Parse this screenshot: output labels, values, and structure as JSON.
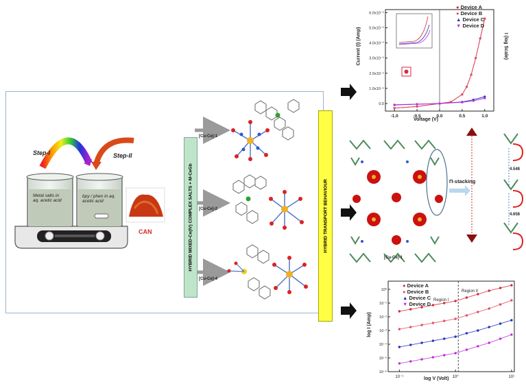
{
  "panel": {
    "step1": "Step-I",
    "step2": "Step-II",
    "beaker1_text": "Metal salts in aq. acetic acid",
    "beaker2_text": "bpy / phen in aq. acetic acid",
    "can_label": "CAN",
    "synthesis_bar": "HYBRID MIXED-Ce(IV) COMPLEX SALTS + M-CeGb",
    "transport_bar": "HYBRID TRANSPORT BEHAVIOUR",
    "complex1": "[Cu-Ce]-1",
    "complex2": "[Cu-Ce]-2",
    "complex3": "[Cu-Ce]-4"
  },
  "packing": {
    "label": "[Cu-Ce]-1",
    "pi_label": "Π-stacking",
    "dist1": "4.548",
    "dist2": "4.658"
  },
  "chart_data": [
    {
      "type": "line",
      "xlabel": "Voltage (V)",
      "ylabel": "Current (I) (Amp)",
      "y2label": "I (log Scale)",
      "x_ticks": [
        "-1.0",
        "-0.5",
        "0.0",
        "0.5",
        "1.0"
      ],
      "y_ticks": [
        "0.0",
        "1.0x10⁻⁵",
        "2.0x10⁻⁵",
        "3.0x10⁻⁵",
        "4.0x10⁻⁵",
        "5.0x10⁻⁵",
        "6.0x10⁻⁵"
      ],
      "legend": [
        "Device A",
        "Device B",
        "Device C",
        "Device D"
      ],
      "colors": [
        "#d42a3c",
        "#e0506a",
        "#2233bb",
        "#c030d8"
      ],
      "series": [
        {
          "name": "Device A",
          "x": [
            -1.0,
            -0.5,
            0.0,
            0.25,
            0.5,
            0.6,
            0.7,
            0.8,
            0.9,
            1.0
          ],
          "y": [
            -0.3,
            -0.2,
            0.0,
            0.1,
            0.6,
            1.1,
            1.9,
            3.0,
            4.3,
            5.6
          ]
        },
        {
          "name": "Device B",
          "x": [
            -1.0,
            -0.5,
            0.0,
            0.25,
            0.5,
            0.6,
            0.7,
            0.8,
            0.9,
            1.0
          ],
          "y": [
            -0.3,
            -0.2,
            0.0,
            0.1,
            0.6,
            1.1,
            1.9,
            3.0,
            4.3,
            5.6
          ]
        },
        {
          "name": "Device C",
          "x": [
            -1.0,
            -0.5,
            0.0,
            0.5,
            0.75,
            1.0
          ],
          "y": [
            -0.1,
            -0.05,
            0.0,
            0.1,
            0.25,
            0.45
          ]
        },
        {
          "name": "Device D",
          "x": [
            -1.0,
            -0.5,
            0.0,
            0.5,
            0.75,
            1.0
          ],
          "y": [
            -0.08,
            -0.04,
            0.0,
            0.08,
            0.18,
            0.35
          ]
        }
      ],
      "xlim": [
        -1.2,
        1.2
      ],
      "ylim": [
        -0.5,
        6.2
      ]
    },
    {
      "type": "scatter",
      "xlabel": "log V (Volt)",
      "ylabel": "log I (Amp)",
      "region1": "Region I",
      "region2": "Region II",
      "x_ticks": [
        "10⁻¹",
        "10⁰",
        "10¹"
      ],
      "y_ticks": [
        "10⁻⁶",
        "10⁻⁵",
        "10⁻⁴",
        "10⁻³",
        "10⁻²",
        "10⁻¹",
        "10⁰"
      ],
      "legend": [
        "Device A",
        "Device B",
        "Device C",
        "Device D"
      ],
      "colors": [
        "#d42a3c",
        "#e0506a",
        "#2233bb",
        "#c030d8"
      ],
      "series": [
        {
          "name": "Device A",
          "x": [
            -1.0,
            -0.8,
            -0.6,
            -0.4,
            -0.2,
            0.0,
            0.2,
            0.4,
            0.6,
            0.8,
            1.0
          ],
          "y": [
            -1.6,
            -1.45,
            -1.3,
            -1.15,
            -1.0,
            -0.85,
            -0.6,
            -0.35,
            -0.1,
            0.1,
            0.3
          ]
        },
        {
          "name": "Device B",
          "x": [
            -1.0,
            -0.8,
            -0.6,
            -0.4,
            -0.2,
            0.0,
            0.2,
            0.4,
            0.6,
            0.8,
            1.0
          ],
          "y": [
            -2.9,
            -2.75,
            -2.6,
            -2.45,
            -2.3,
            -2.15,
            -1.9,
            -1.65,
            -1.4,
            -1.1,
            -0.8
          ]
        },
        {
          "name": "Device C",
          "x": [
            -1.0,
            -0.8,
            -0.6,
            -0.4,
            -0.2,
            0.0,
            0.2,
            0.4,
            0.6,
            0.8,
            1.0
          ],
          "y": [
            -4.2,
            -4.05,
            -3.9,
            -3.75,
            -3.6,
            -3.45,
            -3.2,
            -3.0,
            -2.75,
            -2.5,
            -2.25
          ]
        },
        {
          "name": "Device D",
          "x": [
            -1.0,
            -0.8,
            -0.6,
            -0.4,
            -0.2,
            0.0,
            0.2,
            0.4,
            0.6,
            0.8,
            1.0
          ],
          "y": [
            -5.4,
            -5.25,
            -5.1,
            -4.95,
            -4.8,
            -4.65,
            -4.4,
            -4.15,
            -3.9,
            -3.6,
            -3.3
          ]
        }
      ],
      "xlim": [
        -1.2,
        1.05
      ],
      "ylim": [
        -6.0,
        0.6
      ]
    }
  ]
}
